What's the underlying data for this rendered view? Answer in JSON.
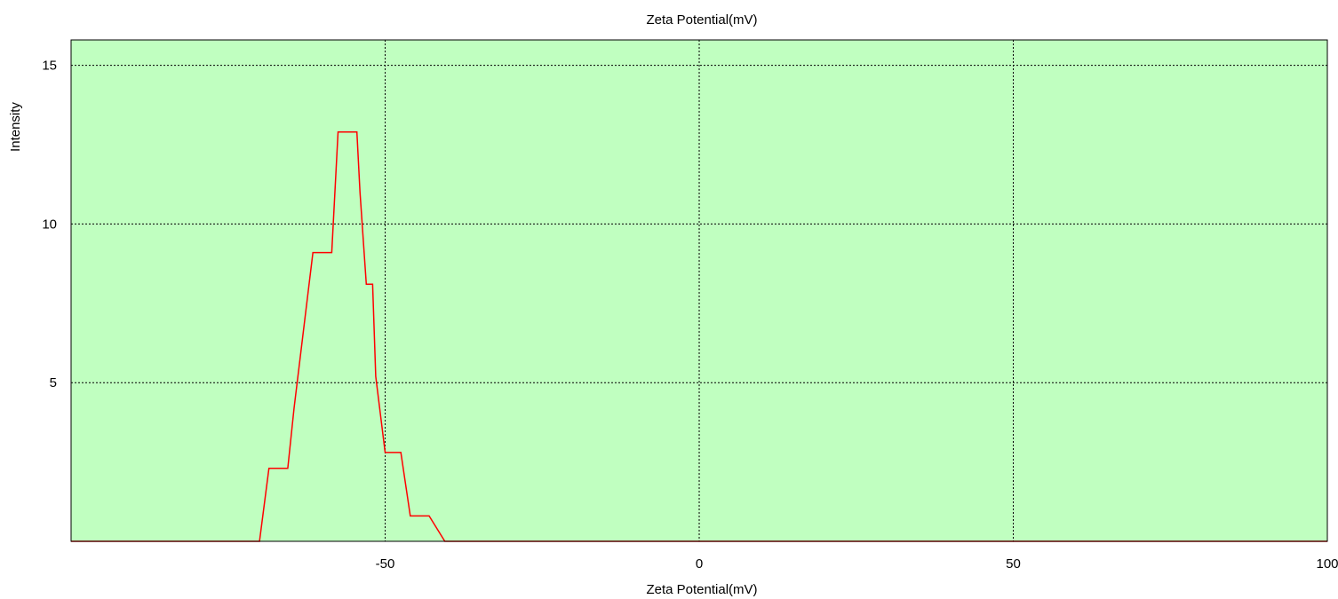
{
  "chart_data": {
    "type": "line",
    "title": "Zeta Potential(mV)",
    "xlabel": "Zeta Potential(mV)",
    "ylabel": "Intensity",
    "xlim": [
      -100,
      100
    ],
    "ylim": [
      0,
      15.8
    ],
    "xticks": [
      -50,
      0,
      50,
      100
    ],
    "yticks": [
      5,
      10,
      15
    ],
    "grid": true,
    "plot_background": "#c0ffc0",
    "series": [
      {
        "color": "#ff0000",
        "x": [
          -100,
          -70,
          -68.5,
          -65.5,
          -64.5,
          -61.5,
          -60.5,
          -58.5,
          -57.5,
          -54.5,
          -54.0,
          -53.0,
          -52.0,
          -51.5,
          -50.0,
          -48.5,
          -47.5,
          -46.0,
          -44.0,
          -43.0,
          -40.5,
          100
        ],
        "y": [
          0,
          0,
          2.3,
          2.3,
          4.2,
          9.1,
          9.1,
          9.1,
          12.9,
          12.9,
          11.0,
          8.1,
          8.1,
          5.2,
          2.8,
          2.8,
          2.8,
          0.8,
          0.8,
          0.8,
          0,
          0
        ]
      }
    ]
  }
}
